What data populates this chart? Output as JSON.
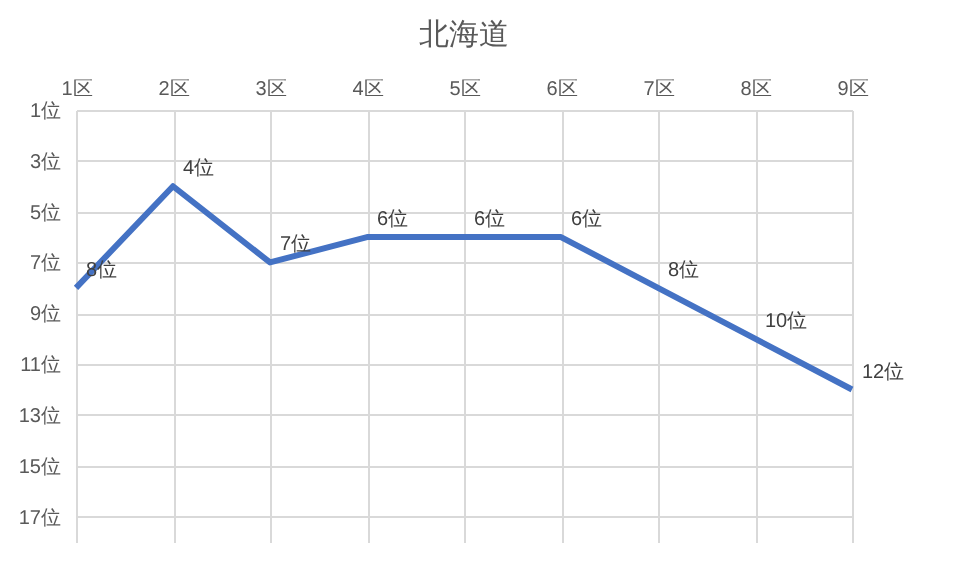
{
  "chart_data": {
    "type": "line",
    "title": "北海道",
    "categories": [
      "1区",
      "2区",
      "3区",
      "4区",
      "5区",
      "6区",
      "7区",
      "8区",
      "9区"
    ],
    "series": [
      {
        "color": "#4472c4",
        "values": [
          8,
          4,
          7,
          6,
          6,
          6,
          8,
          10,
          12
        ],
        "value_labels": [
          "8位",
          "4位",
          "7位",
          "6位",
          "6位",
          "6位",
          "8位",
          "10位",
          "12位"
        ]
      }
    ],
    "ylim": [
      18,
      1
    ],
    "yticks": [
      {
        "value": 1,
        "label": "1位"
      },
      {
        "value": 3,
        "label": "3位"
      },
      {
        "value": 5,
        "label": "5位"
      },
      {
        "value": 7,
        "label": "7位"
      },
      {
        "value": 9,
        "label": "9位"
      },
      {
        "value": 11,
        "label": "11位"
      },
      {
        "value": 13,
        "label": "13位"
      },
      {
        "value": 15,
        "label": "15位"
      },
      {
        "value": 17,
        "label": "17位"
      }
    ],
    "grid": true,
    "marker": "none",
    "line_style": "solid"
  }
}
